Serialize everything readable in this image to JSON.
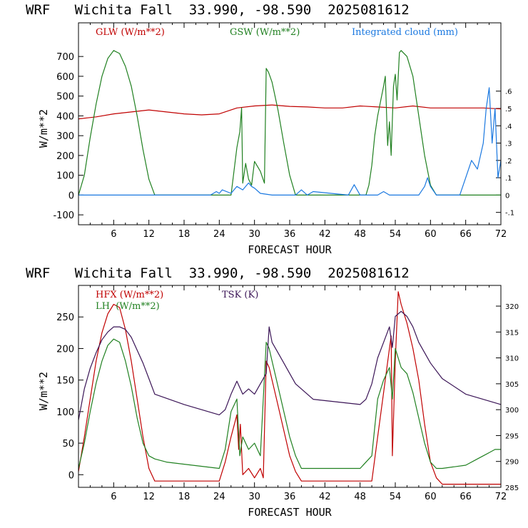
{
  "chart_data": [
    {
      "type": "line",
      "title": "WRF   Wichita Fall  33.990, -98.590  2025081612",
      "xlabel": "FORECAST HOUR",
      "ylabel": "W/m**2",
      "xlim": [
        0,
        72
      ],
      "xticks": [
        6,
        12,
        18,
        24,
        30,
        36,
        42,
        48,
        54,
        60,
        66,
        72
      ],
      "ylim": [
        -150,
        870
      ],
      "yticks": [
        -100,
        0,
        100,
        200,
        300,
        400,
        500,
        600,
        700
      ],
      "y2lim": [
        -0.1714,
        0.9943
      ],
      "y2ticks": [
        ".6",
        ".5",
        ".4",
        ".3",
        ".2",
        ".1",
        "0",
        "-.1"
      ],
      "y2tick_values": [
        0.6,
        0.5,
        0.4,
        0.3,
        0.2,
        0.1,
        0,
        -0.1
      ],
      "grid": false,
      "series": [
        {
          "name": "GLW (W/m**2)",
          "color": "#c00000",
          "axis": "left",
          "x": [
            0,
            3,
            6,
            9,
            12,
            15,
            18,
            21,
            24,
            27,
            30,
            33,
            36,
            39,
            42,
            45,
            48,
            51,
            54,
            57,
            60,
            63,
            66,
            69,
            72
          ],
          "y": [
            385,
            395,
            410,
            420,
            430,
            420,
            410,
            405,
            410,
            440,
            450,
            455,
            448,
            445,
            440,
            440,
            450,
            445,
            440,
            450,
            440,
            440,
            440,
            440,
            435
          ]
        },
        {
          "name": "GSW (W/m**2)",
          "color": "#208020",
          "axis": "left",
          "x": [
            0,
            1,
            2,
            3,
            4,
            5,
            6,
            7,
            8,
            9,
            10,
            11,
            12,
            13,
            14,
            26,
            26.5,
            27,
            27.5,
            27.8,
            28,
            28.5,
            29,
            29.5,
            30,
            31,
            31.7,
            32,
            32.4,
            33,
            34,
            35,
            36,
            37,
            38,
            49,
            49.5,
            50,
            50.5,
            51,
            52,
            52.3,
            52.7,
            53,
            53.3,
            53.7,
            54,
            54.3,
            54.7,
            55,
            56,
            57,
            58,
            59,
            60,
            61,
            72
          ],
          "y": [
            0,
            100,
            290,
            460,
            600,
            690,
            730,
            715,
            650,
            550,
            400,
            230,
            80,
            0,
            0,
            0,
            120,
            240,
            320,
            440,
            60,
            160,
            80,
            50,
            170,
            120,
            60,
            640,
            620,
            570,
            430,
            260,
            100,
            0,
            0,
            0,
            50,
            150,
            300,
            400,
            550,
            600,
            250,
            370,
            200,
            550,
            610,
            480,
            720,
            730,
            700,
            600,
            400,
            200,
            50,
            0,
            0
          ]
        },
        {
          "name": "Integrated cloud (mm)",
          "color": "#1a78e0",
          "axis": "right",
          "x": [
            0,
            22.5,
            23.5,
            24,
            24.5,
            26,
            27,
            28,
            29,
            29.5,
            30,
            31,
            33,
            37,
            38,
            39,
            40,
            46,
            47,
            48,
            51,
            52,
            53,
            58,
            59,
            59.5,
            60,
            61,
            65,
            66,
            67,
            68,
            69,
            69.5,
            70,
            70.5,
            71,
            71.5,
            72
          ],
          "y": [
            0,
            0,
            0.02,
            0.01,
            0.03,
            0.01,
            0.05,
            0.03,
            0.07,
            0.05,
            0.04,
            0.01,
            0,
            0,
            0.03,
            0,
            0.02,
            0,
            0.06,
            0,
            0,
            0.02,
            0,
            0,
            0.05,
            0.1,
            0.05,
            0,
            0,
            0.1,
            0.2,
            0.15,
            0.3,
            0.5,
            0.62,
            0.3,
            0.5,
            0.1,
            0.2
          ]
        }
      ]
    },
    {
      "type": "line",
      "title": "WRF   Wichita Fall  33.990, -98.590  2025081612",
      "xlabel": "FORECAST HOUR",
      "ylabel": "W/m**2",
      "xlim": [
        0,
        72
      ],
      "xticks": [
        6,
        12,
        18,
        24,
        30,
        36,
        42,
        48,
        54,
        60,
        66,
        72
      ],
      "ylim": [
        -20,
        300
      ],
      "yticks": [
        0,
        50,
        100,
        150,
        200,
        250
      ],
      "y2lim": [
        285,
        324
      ],
      "y2ticks": [
        "320",
        "315",
        "310",
        "305",
        "300",
        "295",
        "290",
        "285"
      ],
      "y2tick_values": [
        320,
        315,
        310,
        305,
        300,
        295,
        290,
        285
      ],
      "grid": false,
      "series": [
        {
          "name": "HFX (W/m**2)",
          "color": "#c00000",
          "axis": "left",
          "x": [
            0,
            1,
            2,
            3,
            4,
            5,
            6,
            7,
            8,
            9,
            10,
            11,
            12,
            13,
            24,
            25,
            26,
            27,
            27.3,
            27.6,
            28,
            29,
            30,
            31,
            31.5,
            32,
            32.5,
            33,
            34,
            35,
            36,
            37,
            38,
            50,
            51,
            52,
            53,
            53.3,
            53.5,
            54,
            54.5,
            55,
            56,
            57,
            58,
            59,
            60,
            61,
            62,
            72
          ],
          "y": [
            5,
            60,
            120,
            180,
            225,
            255,
            270,
            265,
            230,
            180,
            120,
            60,
            10,
            -10,
            -10,
            20,
            60,
            95,
            40,
            80,
            0,
            10,
            -5,
            10,
            -5,
            180,
            170,
            150,
            110,
            70,
            30,
            5,
            -10,
            -10,
            60,
            130,
            200,
            220,
            30,
            180,
            290,
            270,
            240,
            200,
            150,
            80,
            20,
            -5,
            -15,
            -15
          ]
        },
        {
          "name": "LH  (W/m**2)",
          "color": "#208020",
          "axis": "left",
          "x": [
            0,
            1,
            2,
            3,
            4,
            5,
            6,
            7,
            8,
            9,
            10,
            11,
            12,
            13,
            15,
            24,
            25,
            26,
            27,
            27.5,
            28,
            29,
            30,
            31,
            32,
            32.5,
            33,
            34,
            35,
            36,
            37,
            38,
            48,
            50,
            51,
            52,
            53,
            53.5,
            54,
            55,
            56,
            57,
            58,
            59,
            60,
            61,
            62,
            66,
            68,
            69,
            70,
            71,
            72
          ],
          "y": [
            10,
            50,
            100,
            145,
            180,
            205,
            215,
            210,
            180,
            140,
            90,
            50,
            30,
            25,
            20,
            10,
            40,
            100,
            120,
            30,
            60,
            40,
            50,
            30,
            210,
            200,
            180,
            140,
            100,
            60,
            30,
            10,
            10,
            30,
            120,
            150,
            170,
            120,
            200,
            170,
            160,
            130,
            90,
            50,
            20,
            10,
            10,
            15,
            25,
            30,
            35,
            40,
            40
          ]
        },
        {
          "name": "TSK (K)",
          "color": "#3a1456",
          "axis": "right",
          "x": [
            0,
            1,
            2,
            3,
            4,
            5,
            6,
            7,
            8,
            9,
            10,
            11,
            12,
            13,
            18,
            24,
            25,
            26,
            27,
            28,
            29,
            30,
            31,
            32,
            32.5,
            33,
            34,
            35,
            36,
            37,
            40,
            48,
            49,
            50,
            51,
            52,
            53,
            53.5,
            54,
            55,
            56,
            57,
            58,
            59,
            60,
            62,
            66,
            72
          ],
          "y": [
            298,
            304,
            308,
            311,
            313.5,
            315,
            316,
            316,
            315.5,
            314,
            311.5,
            309,
            306,
            303,
            301,
            299,
            300,
            303,
            305.5,
            303,
            304,
            303,
            305,
            307,
            316,
            313,
            311,
            309,
            307,
            305,
            302,
            301,
            302,
            305,
            310,
            313,
            316,
            312,
            318,
            319,
            318,
            316,
            313,
            311,
            309,
            306,
            303,
            301
          ]
        }
      ]
    }
  ]
}
